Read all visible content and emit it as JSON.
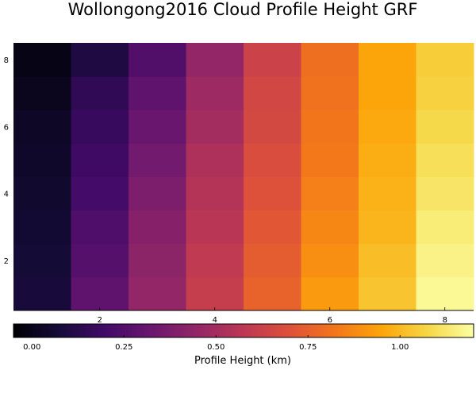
{
  "chart_data": {
    "type": "heatmap",
    "title": "Wollongong2016 Cloud Profile Height GRF",
    "x_range": [
      0.5,
      8.5
    ],
    "y_range": [
      0.5,
      8.5
    ],
    "x_ticks": [
      "2",
      "4",
      "6",
      "8"
    ],
    "y_ticks": [
      "2",
      "4",
      "6",
      "8"
    ],
    "x_tick_values": [
      2,
      4,
      6,
      8
    ],
    "y_tick_values": [
      2,
      4,
      6,
      8
    ],
    "grid": false,
    "colormap": "inferno",
    "colorbar": {
      "label": "Profile Height (km)",
      "range": [
        -0.05,
        1.2
      ],
      "orientation": "horizontal",
      "placement": "bottom",
      "ticks": [
        "0.00",
        "0.25",
        "0.50",
        "0.75",
        "1.00"
      ],
      "tick_values": [
        0,
        0.25,
        0.5,
        0.75,
        1.0
      ]
    },
    "x": [
      1,
      2,
      3,
      4,
      5,
      6,
      7,
      8
    ],
    "y": [
      1,
      2,
      3,
      4,
      5,
      6,
      7,
      8
    ],
    "z": [
      [
        0.08,
        0.29,
        0.45,
        0.61,
        0.76,
        0.92,
        1.03,
        1.18
      ],
      [
        0.07,
        0.26,
        0.43,
        0.59,
        0.74,
        0.89,
        1.01,
        1.16
      ],
      [
        0.06,
        0.24,
        0.41,
        0.57,
        0.72,
        0.87,
        0.99,
        1.14
      ],
      [
        0.05,
        0.21,
        0.38,
        0.55,
        0.7,
        0.85,
        0.98,
        1.12
      ],
      [
        0.04,
        0.19,
        0.35,
        0.53,
        0.68,
        0.83,
        0.97,
        1.1
      ],
      [
        0.03,
        0.17,
        0.32,
        0.5,
        0.66,
        0.82,
        0.96,
        1.08
      ],
      [
        0.01,
        0.15,
        0.29,
        0.48,
        0.65,
        0.81,
        0.95,
        1.06
      ],
      [
        -0.01,
        0.1,
        0.25,
        0.45,
        0.63,
        0.8,
        0.95,
        1.05
      ]
    ]
  }
}
